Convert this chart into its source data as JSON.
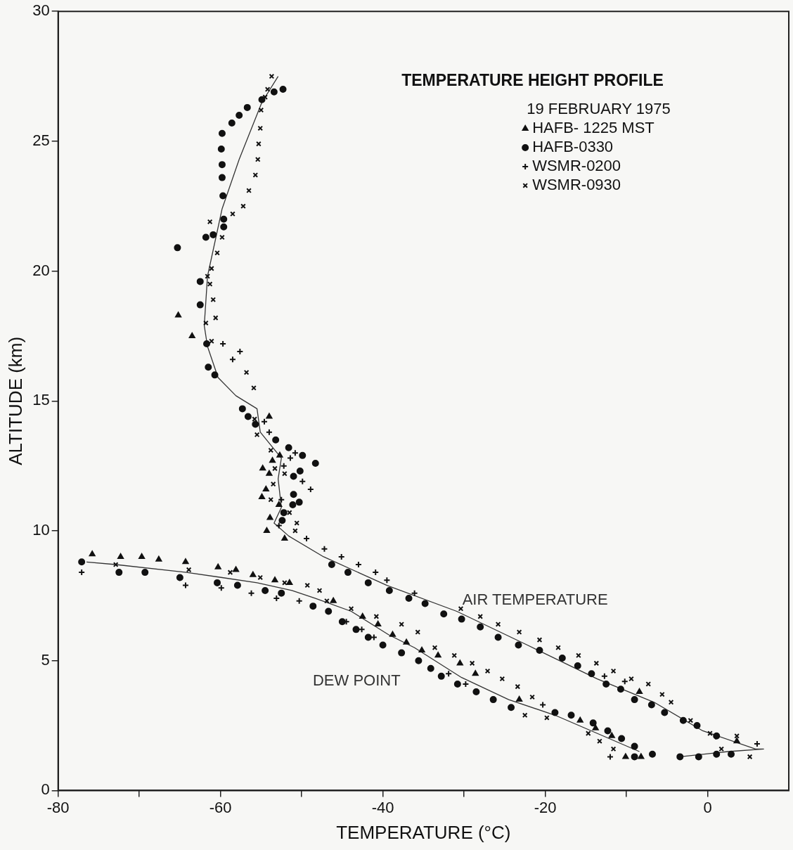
{
  "chart_data": {
    "type": "scatter",
    "title": "TEMPERATURE HEIGHT PROFILE",
    "legend_title": "19 FEBRUARY 1975",
    "xlabel": "TEMPERATURE (°C)",
    "ylabel": "ALTITUDE (km)",
    "xlim": [
      -80,
      10
    ],
    "ylim": [
      0,
      30
    ],
    "xticks": [
      -80,
      {
        "value": -70,
        "label": null
      },
      -60,
      {
        "value": -50,
        "label": null
      },
      -40,
      {
        "value": -30,
        "label": null
      },
      -20,
      {
        "value": -10,
        "label": null
      },
      0
    ],
    "yticks": [
      0,
      5,
      10,
      15,
      20,
      25,
      30
    ],
    "grid": false,
    "legend": "top right",
    "series": [
      {
        "name": "HAFB- 1225 MST",
        "type": "scatter",
        "marker": "triangle",
        "color": "#111111",
        "x": [
          -75.8,
          -72.3,
          -69.7,
          -67.6,
          -64.3,
          -60.3,
          -58.1,
          -56.0,
          -53.3,
          -51.5,
          -46.1,
          -42.5,
          -40.6,
          -38.8,
          -37.1,
          -35.2,
          -33.2,
          -30.5,
          -28.6,
          -23.2,
          -15.7,
          -13.8,
          -11.8,
          -10.1,
          -8.2,
          -54.0,
          -52.7,
          -53.6,
          -54.8,
          -54.0,
          -54.4,
          -54.9,
          -52.8,
          -53.9,
          -54.3,
          -52.1,
          -65.2,
          -63.5,
          -8.4,
          3.6
        ],
        "values": [
          9.1,
          9.0,
          9.0,
          8.9,
          8.8,
          8.6,
          8.5,
          8.3,
          8.1,
          8.0,
          7.3,
          6.7,
          6.4,
          6.0,
          5.7,
          5.4,
          5.2,
          4.9,
          4.5,
          3.5,
          2.7,
          2.4,
          2.1,
          1.3,
          1.3,
          14.4,
          12.9,
          12.7,
          12.4,
          12.2,
          11.6,
          11.3,
          11.0,
          10.5,
          10.0,
          9.7,
          18.3,
          17.5,
          3.8,
          1.9
        ]
      },
      {
        "name": "HAFB-0330",
        "type": "scatter",
        "marker": "circle",
        "color": "#111111",
        "x": [
          -52.3,
          -53.4,
          -54.9,
          -56.7,
          -57.7,
          -58.6,
          -59.8,
          -59.9,
          -59.8,
          -59.8,
          -59.7,
          -59.6,
          -59.6,
          -60.9,
          -61.8,
          -62.5,
          -62.5,
          -61.7,
          -65.3,
          -61.5,
          -60.7,
          -57.3,
          -56.6,
          -55.7,
          -53.2,
          -51.6,
          -49.9,
          -48.3,
          -50.2,
          -51.0,
          -51.0,
          -50.3,
          -51.1,
          -52.2,
          -52.4,
          -46.3,
          -44.3,
          -41.8,
          -39.2,
          -36.8,
          -34.8,
          -32.5,
          -30.3,
          -28.0,
          -25.8,
          -23.3,
          -20.7,
          -17.9,
          -16.0,
          -14.3,
          -12.5,
          -10.7,
          -9.0,
          -6.9,
          -5.3,
          -3.0,
          -1.3,
          1.1,
          2.9,
          1.1,
          -1.1,
          -3.4,
          -77.1,
          -72.5,
          -69.3,
          -65.0,
          -60.4,
          -57.9,
          -54.5,
          -52.5,
          -48.6,
          -46.7,
          -45.0,
          -43.3,
          -41.8,
          -40.0,
          -37.7,
          -35.6,
          -34.1,
          -32.8,
          -30.8,
          -28.5,
          -26.4,
          -24.2,
          -18.8,
          -16.8,
          -14.1,
          -12.3,
          -10.6,
          -9.0,
          -6.8,
          -9.0
        ],
        "values": [
          27.0,
          26.9,
          26.6,
          26.3,
          26.0,
          25.7,
          25.3,
          24.7,
          24.1,
          23.6,
          22.9,
          22.0,
          21.7,
          21.4,
          21.3,
          19.6,
          18.7,
          17.2,
          20.9,
          16.3,
          16.0,
          14.7,
          14.4,
          14.1,
          13.5,
          13.2,
          12.9,
          12.6,
          12.3,
          12.1,
          11.4,
          11.1,
          11.0,
          10.7,
          10.4,
          8.7,
          8.4,
          8.0,
          7.7,
          7.4,
          7.2,
          6.8,
          6.6,
          6.3,
          5.9,
          5.6,
          5.4,
          5.1,
          4.8,
          4.5,
          4.1,
          3.9,
          3.5,
          3.3,
          3.0,
          2.7,
          2.5,
          2.1,
          1.4,
          1.4,
          1.3,
          1.3,
          8.8,
          8.4,
          8.4,
          8.2,
          8.0,
          7.9,
          7.7,
          7.6,
          7.1,
          6.9,
          6.5,
          6.2,
          5.9,
          5.6,
          5.3,
          5.0,
          4.7,
          4.4,
          4.1,
          3.8,
          3.5,
          3.2,
          3.0,
          2.9,
          2.6,
          2.3,
          2.0,
          1.7,
          1.4,
          1.3
        ]
      },
      {
        "name": "WSMR-0200",
        "type": "scatter",
        "marker": "cross",
        "color": "#111111",
        "x": [
          -77.1,
          -64.3,
          -59.9,
          -56.2,
          -53.1,
          -50.3,
          -44.5,
          -42.6,
          -41.1,
          -31.9,
          -29.8,
          -20.3,
          -12.0,
          -47.2,
          -45.1,
          -43.0,
          -40.9,
          -39.5,
          -36.1,
          -12.7,
          -10.2,
          6.1,
          -57.6,
          -58.5,
          -54.6,
          -54.0,
          -50.8,
          -51.4,
          -52.2,
          -49.9,
          -48.9,
          -52.5,
          -52.8,
          -49.4,
          -59.7
        ],
        "values": [
          8.4,
          7.9,
          7.8,
          7.6,
          7.4,
          7.3,
          6.5,
          6.2,
          5.9,
          4.5,
          4.1,
          3.3,
          1.3,
          9.3,
          9.0,
          8.7,
          8.4,
          8.1,
          7.6,
          4.4,
          4.2,
          1.8,
          16.9,
          16.6,
          14.2,
          13.8,
          13.0,
          12.8,
          12.5,
          11.9,
          11.6,
          11.2,
          10.2,
          9.7,
          17.2
        ]
      },
      {
        "name": "WSMR-0930",
        "type": "scatter",
        "marker": "x",
        "color": "#111111",
        "x": [
          -53.7,
          -54.2,
          -54.5,
          -55.0,
          -55.1,
          -55.3,
          -55.4,
          -55.7,
          -56.5,
          -57.2,
          -58.5,
          -61.3,
          -59.8,
          -60.4,
          -61.1,
          -61.6,
          -61.3,
          -60.9,
          -60.6,
          -61.8,
          -61.1,
          -56.8,
          -55.9,
          -55.8,
          -55.5,
          -53.8,
          -53.3,
          -52.1,
          -53.5,
          -53.8,
          -51.5,
          -50.6,
          -50.8,
          -30.4,
          -28.0,
          -25.8,
          -23.2,
          -20.7,
          -18.4,
          -15.9,
          -13.7,
          -11.6,
          -9.4,
          -7.3,
          -5.6,
          -4.5,
          -2.1,
          0.3,
          3.6,
          1.7,
          5.2,
          -72.9,
          -63.9,
          -58.8,
          -55.1,
          -52.1,
          -49.3,
          -47.8,
          -46.9,
          -43.9,
          -40.8,
          -37.7,
          -35.7,
          -33.6,
          -31.2,
          -29.0,
          -27.1,
          -25.3,
          -23.4,
          -21.6,
          -22.5,
          -19.8,
          -14.7,
          -13.3,
          -11.6
        ],
        "values": [
          27.5,
          27.0,
          26.7,
          26.2,
          25.5,
          24.9,
          24.3,
          23.7,
          23.1,
          22.5,
          22.2,
          21.9,
          21.3,
          20.7,
          20.1,
          19.8,
          19.5,
          18.9,
          18.2,
          18.0,
          17.3,
          16.1,
          15.5,
          14.3,
          13.7,
          13.1,
          12.4,
          12.2,
          11.8,
          11.2,
          10.7,
          10.3,
          10.0,
          7.0,
          6.7,
          6.4,
          6.1,
          5.8,
          5.5,
          5.2,
          4.9,
          4.6,
          4.3,
          4.1,
          3.7,
          3.4,
          2.7,
          2.2,
          2.1,
          1.6,
          1.3,
          8.7,
          8.5,
          8.4,
          8.2,
          8.0,
          7.9,
          7.7,
          7.3,
          7.0,
          6.7,
          6.4,
          6.1,
          5.5,
          5.2,
          4.9,
          4.6,
          4.3,
          4.0,
          3.6,
          2.9,
          2.8,
          2.2,
          1.9,
          1.6
        ]
      },
      {
        "name": "AIR TEMPERATURE",
        "type": "line",
        "marker": "none",
        "color": "#333333",
        "x": [
          -52.9,
          -54.9,
          -57.7,
          -59.8,
          -61.6,
          -62.0,
          -61.6,
          -60.3,
          -58.1,
          -55.5,
          -55.1,
          -53.8,
          -52.5,
          -52.9,
          -52.5,
          -53.4,
          -51.6,
          -47.3,
          -39.5,
          -30.9,
          -22.2,
          -13.6,
          -6.6,
          -0.6,
          5.9,
          6.9,
          2.5,
          -3.4
        ],
        "values": [
          27.5,
          26.5,
          24.3,
          22.4,
          19.8,
          17.9,
          17.1,
          15.9,
          15.2,
          14.7,
          13.8,
          13.3,
          12.8,
          12.0,
          10.9,
          10.3,
          9.8,
          9.0,
          7.9,
          6.9,
          5.6,
          4.3,
          3.4,
          2.3,
          1.6,
          1.6,
          1.5,
          1.3
        ]
      },
      {
        "name": "DEW POINT",
        "type": "line",
        "marker": "none",
        "color": "#333333",
        "x": [
          -76.5,
          -72.9,
          -64.2,
          -59.8,
          -55.5,
          -51.2,
          -48.3,
          -43.9,
          -39.3,
          -36.1,
          -30.3,
          -24.5,
          -18.8,
          -8.4
        ],
        "values": [
          8.8,
          8.7,
          8.4,
          8.2,
          8.0,
          7.7,
          7.4,
          6.9,
          6.0,
          5.5,
          4.35,
          3.5,
          2.9,
          1.5
        ]
      }
    ]
  }
}
